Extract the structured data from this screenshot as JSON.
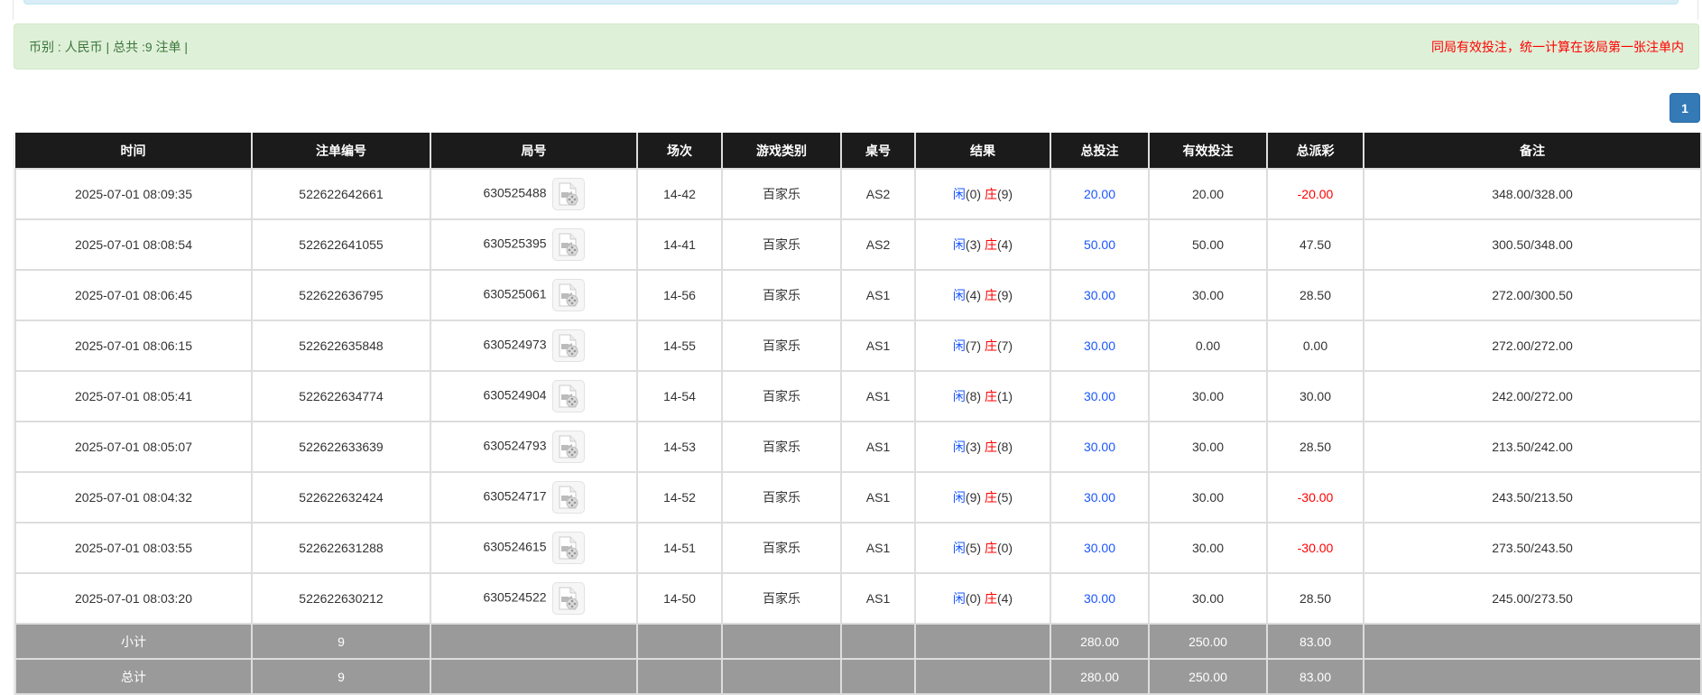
{
  "summary": {
    "left_text": "币别 : 人民币 | 总共 :9 注单 |",
    "right_text": "同局有效投注，统一计算在该局第一张注单内"
  },
  "pagination": {
    "current_page": "1"
  },
  "colors": {
    "header_bg": "#1b1b1b",
    "summary_bg": "#9a9a9a",
    "alert_bg": "#dff0d8",
    "blue": "#1a56ff",
    "red": "#ff0000",
    "page_button": "#337ab7"
  },
  "table": {
    "columns": [
      "时间",
      "注单编号",
      "局号",
      "场次",
      "游戏类别",
      "桌号",
      "结果",
      "总投注",
      "有效投注",
      "总派彩",
      "备注"
    ],
    "rows": [
      {
        "time": "2025-07-01 08:09:35",
        "bet_id": "522622642661",
        "round": "630525488",
        "shoe": "14-42",
        "game": "百家乐",
        "table": "AS2",
        "player_label": "闲",
        "player": "(0)",
        "banker_label": "庄",
        "banker": "(9)",
        "total_bet": "20.00",
        "valid_bet": "20.00",
        "payout": "-20.00",
        "payout_negative": true,
        "note": "348.00/328.00"
      },
      {
        "time": "2025-07-01 08:08:54",
        "bet_id": "522622641055",
        "round": "630525395",
        "shoe": "14-41",
        "game": "百家乐",
        "table": "AS2",
        "player_label": "闲",
        "player": "(3)",
        "banker_label": "庄",
        "banker": "(4)",
        "total_bet": "50.00",
        "valid_bet": "50.00",
        "payout": "47.50",
        "payout_negative": false,
        "note": "300.50/348.00"
      },
      {
        "time": "2025-07-01 08:06:45",
        "bet_id": "522622636795",
        "round": "630525061",
        "shoe": "14-56",
        "game": "百家乐",
        "table": "AS1",
        "player_label": "闲",
        "player": "(4)",
        "banker_label": "庄",
        "banker": "(9)",
        "total_bet": "30.00",
        "valid_bet": "30.00",
        "payout": "28.50",
        "payout_negative": false,
        "note": "272.00/300.50"
      },
      {
        "time": "2025-07-01 08:06:15",
        "bet_id": "522622635848",
        "round": "630524973",
        "shoe": "14-55",
        "game": "百家乐",
        "table": "AS1",
        "player_label": "闲",
        "player": "(7)",
        "banker_label": "庄",
        "banker": "(7)",
        "total_bet": "30.00",
        "valid_bet": "0.00",
        "payout": "0.00",
        "payout_negative": false,
        "note": "272.00/272.00"
      },
      {
        "time": "2025-07-01 08:05:41",
        "bet_id": "522622634774",
        "round": "630524904",
        "shoe": "14-54",
        "game": "百家乐",
        "table": "AS1",
        "player_label": "闲",
        "player": "(8)",
        "banker_label": "庄",
        "banker": "(1)",
        "total_bet": "30.00",
        "valid_bet": "30.00",
        "payout": "30.00",
        "payout_negative": false,
        "note": "242.00/272.00"
      },
      {
        "time": "2025-07-01 08:05:07",
        "bet_id": "522622633639",
        "round": "630524793",
        "shoe": "14-53",
        "game": "百家乐",
        "table": "AS1",
        "player_label": "闲",
        "player": "(3)",
        "banker_label": "庄",
        "banker": "(8)",
        "total_bet": "30.00",
        "valid_bet": "30.00",
        "payout": "28.50",
        "payout_negative": false,
        "note": "213.50/242.00"
      },
      {
        "time": "2025-07-01 08:04:32",
        "bet_id": "522622632424",
        "round": "630524717",
        "shoe": "14-52",
        "game": "百家乐",
        "table": "AS1",
        "player_label": "闲",
        "player": "(9)",
        "banker_label": "庄",
        "banker": "(5)",
        "total_bet": "30.00",
        "valid_bet": "30.00",
        "payout": "-30.00",
        "payout_negative": true,
        "note": "243.50/213.50"
      },
      {
        "time": "2025-07-01 08:03:55",
        "bet_id": "522622631288",
        "round": "630524615",
        "shoe": "14-51",
        "game": "百家乐",
        "table": "AS1",
        "player_label": "闲",
        "player": "(5)",
        "banker_label": "庄",
        "banker": "(0)",
        "total_bet": "30.00",
        "valid_bet": "30.00",
        "payout": "-30.00",
        "payout_negative": true,
        "note": "273.50/243.50"
      },
      {
        "time": "2025-07-01 08:03:20",
        "bet_id": "522622630212",
        "round": "630524522",
        "shoe": "14-50",
        "game": "百家乐",
        "table": "AS1",
        "player_label": "闲",
        "player": "(0)",
        "banker_label": "庄",
        "banker": "(4)",
        "total_bet": "30.00",
        "valid_bet": "30.00",
        "payout": "28.50",
        "payout_negative": false,
        "note": "245.00/273.50"
      }
    ],
    "subtotal": {
      "label": "小计",
      "count": "9",
      "total_bet": "280.00",
      "valid_bet": "250.00",
      "payout": "83.00"
    },
    "total": {
      "label": "总计",
      "count": "9",
      "total_bet": "280.00",
      "valid_bet": "250.00",
      "payout": "83.00"
    }
  }
}
